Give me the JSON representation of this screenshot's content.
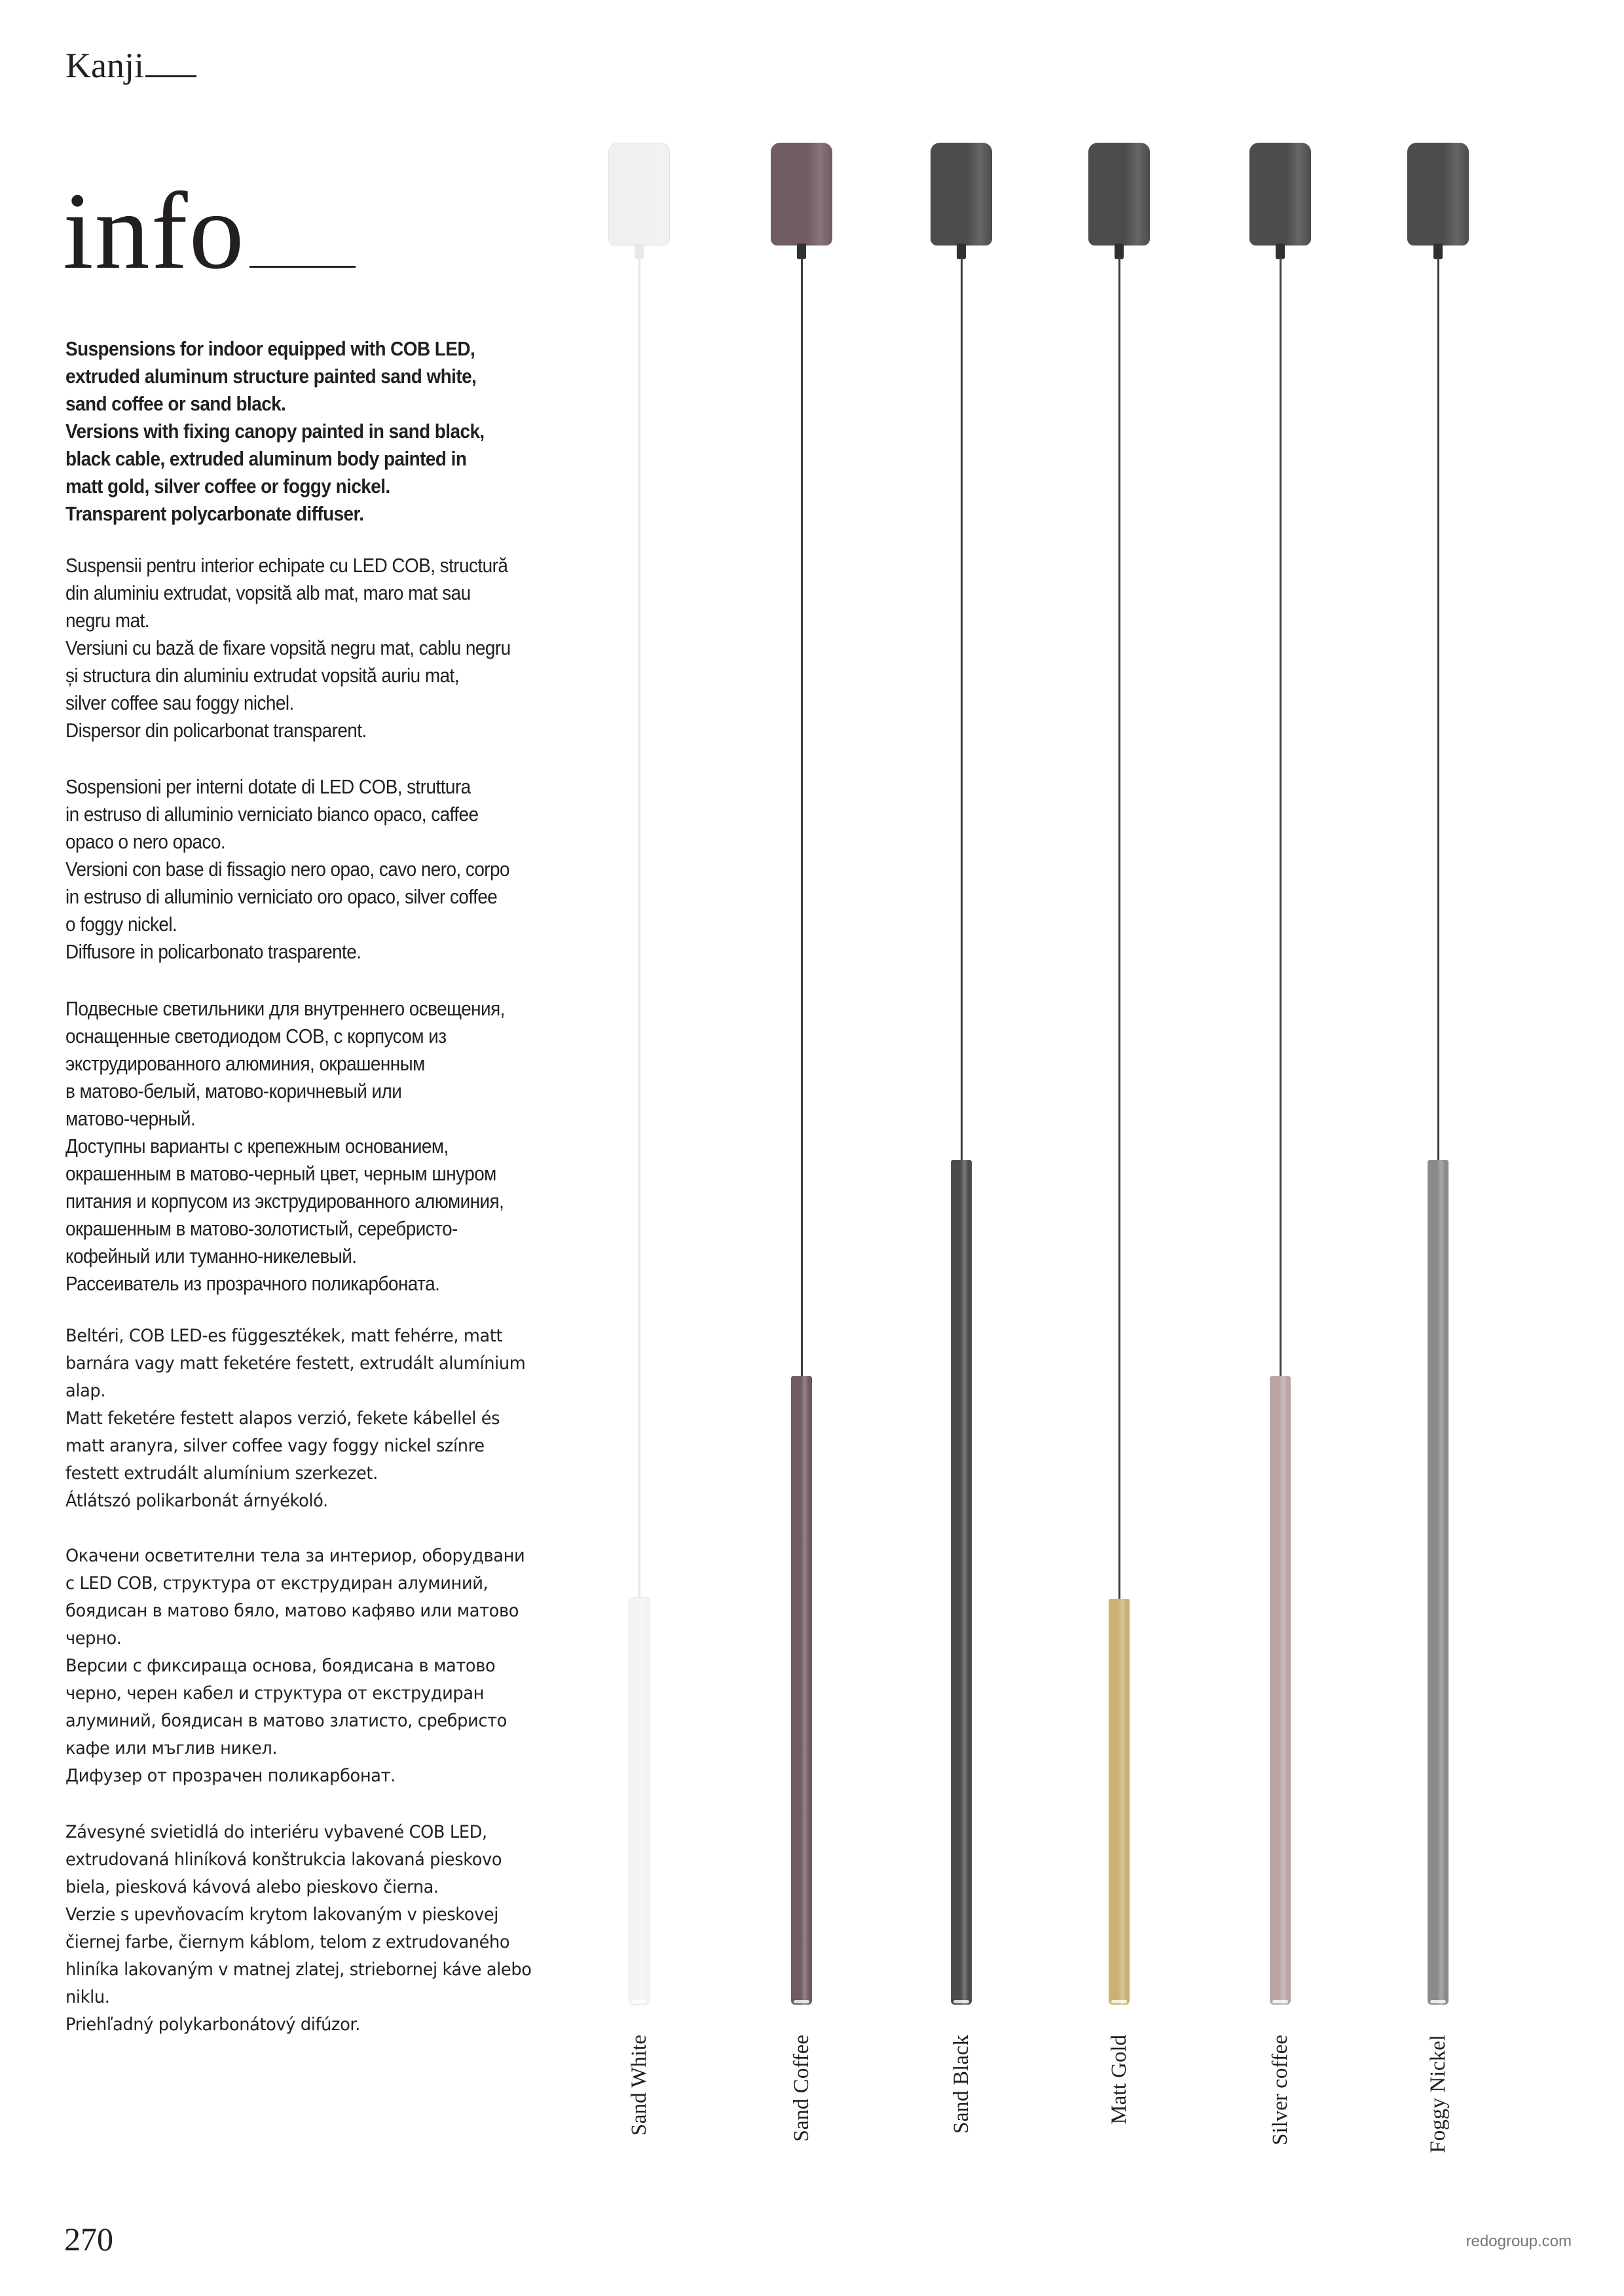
{
  "header": {
    "brand": "Kanji",
    "title": "info"
  },
  "descriptions": {
    "en": "Suspensions for indoor equipped with COB LED,\nextruded aluminum structure painted sand white,\nsand coffee or sand black.\nVersions with fixing canopy painted in sand black,\nblack cable, extruded aluminum body painted in\nmatt gold, silver coffee or foggy nickel.\nTransparent polycarbonate diffuser.",
    "ro": "Suspensii pentru interior echipate cu LED COB, structură\ndin aluminiu extrudat, vopsită alb mat, maro mat sau\nnegru mat.\nVersiuni cu bază de fixare vopsită negru mat, cablu negru\nși structura din aluminiu extrudat vopsită auriu mat,\nsilver coffee sau foggy nichel.\n Dispersor din policarbonat transparent.",
    "it": "Sospensioni per interni dotate di LED COB, struttura\nin estruso di alluminio verniciato bianco opaco, caffee\nopaco o nero opaco.\nVersioni con base di fissagio nero opao, cavo nero, corpo\nin estruso di alluminio verniciato oro opaco, silver coffee\no foggy nickel.\nDiffusore in policarbonato trasparente.",
    "ru": "Подвесные светильники для внутреннего освещения,\nоснащенные светодиодом COB, с корпусом из\nэкструдированного алюминия, окрашенным\nв матово-белый, матово-коричневый или\nматово-черный.\nДоступны варианты с крепежным основанием,\nокрашенным в матово-черный цвет, черным шнуром\nпитания и корпусом из экструдированного алюминия,\nокрашенным в матово-золотистый, серебристо-\nкофейный или туманно-никелевый.\nРассеиватель из прозрачного поликарбоната.",
    "hu": "Beltéri, COB LED-es függesztékek, matt fehérre, matt\nbarnára vagy matt feketére festett, extrudált alumínium\nalap.\nMatt feketére festett alapos verzió, fekete kábellel és\nmatt aranyra, silver coffee vagy foggy nickel színre\nfestett extrudált alumínium szerkezet.\n Átlátszó polikarbonát árnyékoló.",
    "bg": "Окачени осветителни тела за интериор, оборудвани\nс LED COB, структура от екструдиран алуминий,\nбоядисан в матово бяло, матово кафяво или матово\nчерно.\nВерсии с фиксираща основа, боядисана в матово\nчерно, черен кабел и структура от екструдиран\nалуминий, боядисан в матово златисто, сребристо\nкафе или мъглив никел.\nДифузер от прозрачен поликарбонат.",
    "sk": "Závesyné svietidlá do interiéru vybavené COB LED,\nextrudovaná hliníková konštrukcia lakovaná pieskovo\nbiela, piesková kávová alebo pieskovo čierna.\nVerzie s upevňovacím krytom lakovaným v pieskovej\nčiernej farbe, čiernym káblom, telom z extrudovaného\nhliníka lakovaným v matnej zlatej, striebornej káve alebo\nniklu.\nPriehľadný polykarbonátový difúzor."
  },
  "variants": [
    {
      "label": "Sand White",
      "body_color": "#f3f3f3",
      "canopy_color": "#f0f0f0",
      "cable_color": "#e6e6e6"
    },
    {
      "label": "Sand Coffee",
      "body_color": "#6f5b60",
      "canopy_color": "#715c62",
      "cable_color": "#3c3c3c"
    },
    {
      "label": "Sand Black",
      "body_color": "#4b4b4d",
      "canopy_color": "#4c4c4e",
      "cable_color": "#3c3c3c"
    },
    {
      "label": "Matt Gold",
      "body_color": "#c9b273",
      "canopy_color": "#4c4c4e",
      "cable_color": "#3c3c3c"
    },
    {
      "label": "Silver coffee",
      "body_color": "#b9a6a4",
      "canopy_color": "#4c4c4e",
      "cable_color": "#3c3c3c"
    },
    {
      "label": "Foggy Nickel",
      "body_color": "#8a8a8b",
      "canopy_color": "#4c4c4e",
      "cable_color": "#3c3c3c"
    }
  ],
  "footer": {
    "page_number": "270",
    "website": "redogroup.com"
  }
}
